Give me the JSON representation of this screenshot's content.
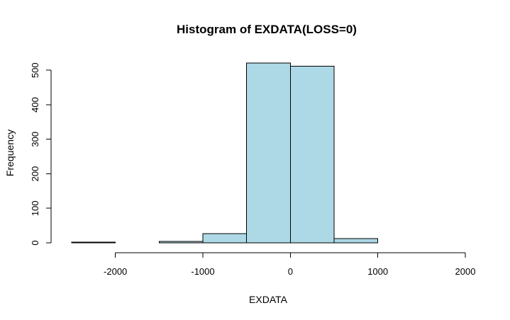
{
  "chart_data": {
    "type": "bar",
    "title": "Histogram of EXDATA(LOSS=0)",
    "xlabel": "EXDATA",
    "ylabel": "Frequency",
    "bins": [
      {
        "x0": -2500,
        "x1": -2000,
        "count": 2
      },
      {
        "x0": -2000,
        "x1": -1500,
        "count": 0
      },
      {
        "x0": -1500,
        "x1": -1000,
        "count": 4
      },
      {
        "x0": -1000,
        "x1": -500,
        "count": 27
      },
      {
        "x0": -500,
        "x1": 0,
        "count": 521
      },
      {
        "x0": 0,
        "x1": 500,
        "count": 512
      },
      {
        "x0": 500,
        "x1": 1000,
        "count": 12
      },
      {
        "x0": 1000,
        "x1": 1500,
        "count": 0
      },
      {
        "x0": 1500,
        "x1": 2000,
        "count": 0
      }
    ],
    "xlim": [
      -2500,
      2000
    ],
    "ylim": [
      0,
      521
    ],
    "xticks": [
      -2000,
      -1000,
      0,
      1000,
      2000
    ],
    "xtick_labels": [
      "-2000",
      "-1000",
      "0",
      "1000",
      "2000"
    ],
    "yticks": [
      0,
      100,
      200,
      300,
      400,
      500
    ],
    "ytick_labels": [
      "0",
      "100",
      "200",
      "300",
      "400",
      "500"
    ],
    "bar_color": "#add8e6",
    "edge_color": "#000000",
    "grid": false
  }
}
